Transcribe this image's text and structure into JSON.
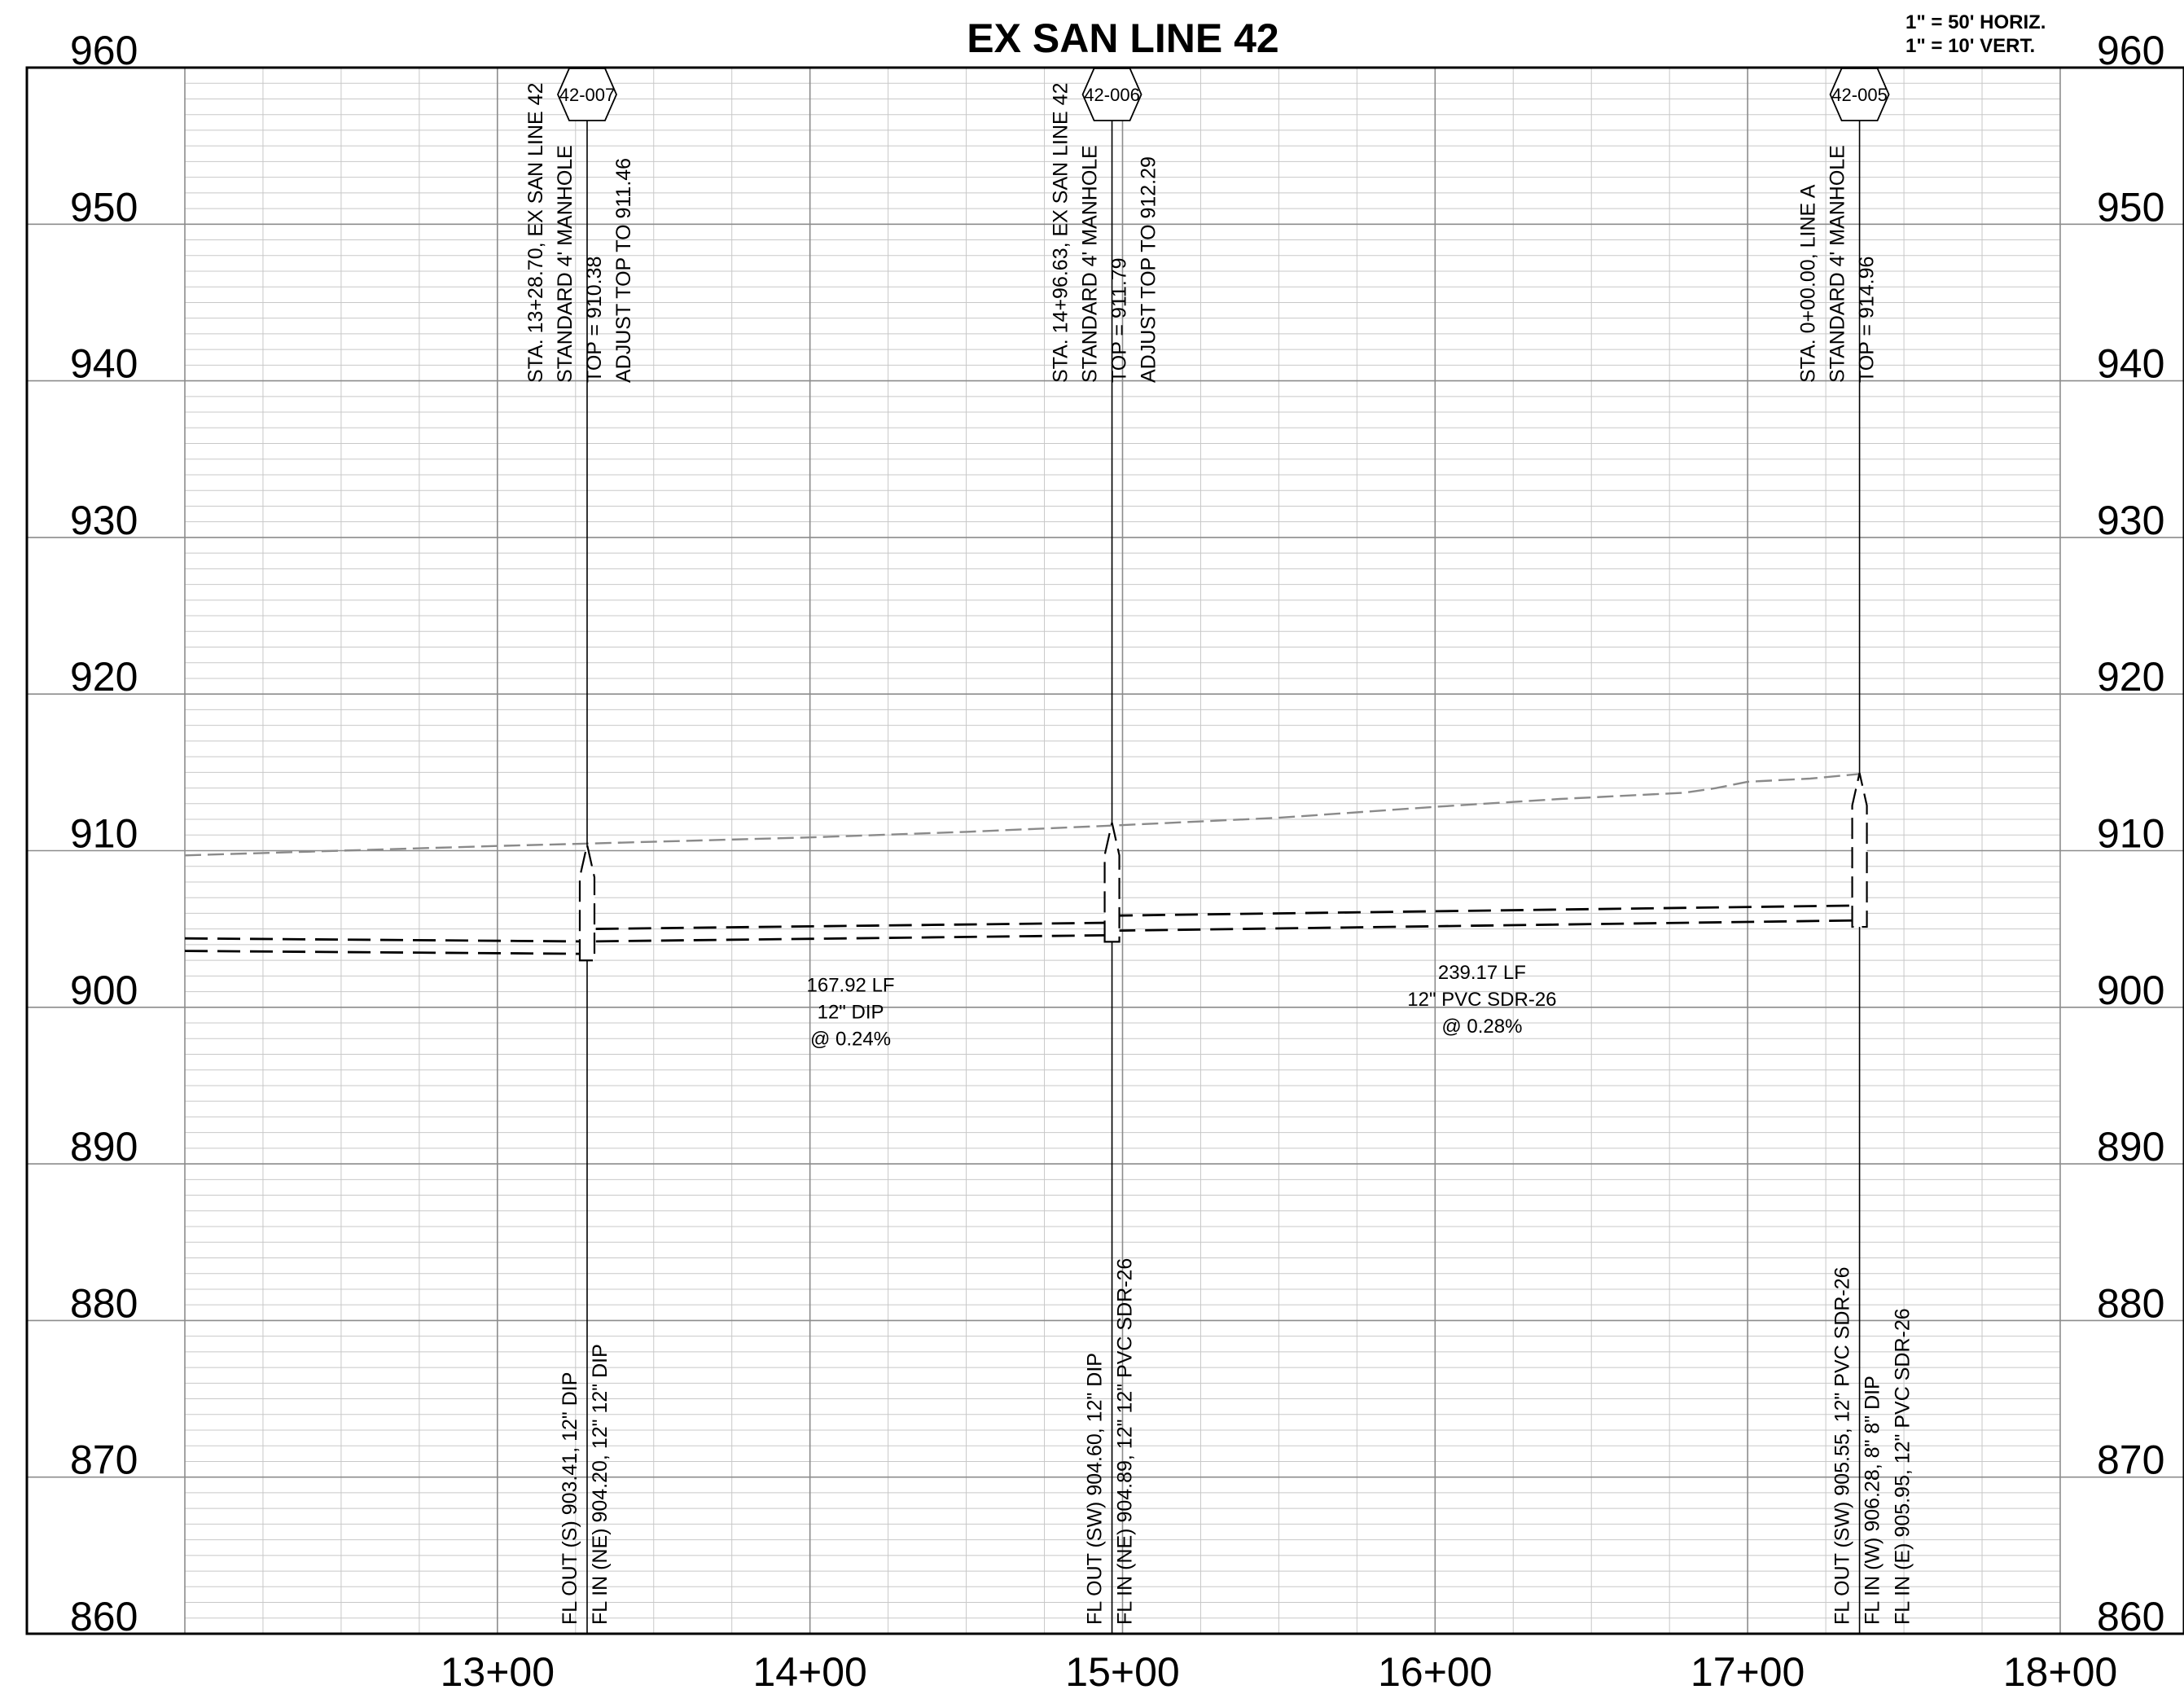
{
  "title": "EX SAN LINE 42",
  "scale": {
    "horizontal": "1\" = 50' HORIZ.",
    "vertical": "1\" = 10' VERT."
  },
  "elevation_labels": [
    "960",
    "950",
    "940",
    "930",
    "920",
    "910",
    "900",
    "890",
    "880",
    "870",
    "860"
  ],
  "station_labels": [
    "13+00",
    "14+00",
    "15+00",
    "16+00",
    "17+00",
    "18+00"
  ],
  "structures": [
    {
      "tag": "42-007",
      "station": 1328.7,
      "top": 910.38,
      "invert": 903.41,
      "top_notes": [
        "STA. 13+28.70, EX SAN LINE 42",
        "STANDARD 4' MANHOLE",
        "TOP = 910.38",
        "ADJUST TOP TO 911.46"
      ],
      "bottom_notes": [
        "FL OUT (S) 903.41, 12\" DIP",
        "FL IN (NE) 904.20, 12\" 12\" DIP"
      ]
    },
    {
      "tag": "42-006",
      "station": 1496.63,
      "top": 911.79,
      "invert": 904.6,
      "top_notes": [
        "STA. 14+96.63, EX SAN LINE 42",
        "STANDARD 4' MANHOLE",
        "TOP = 911.79",
        "ADJUST TOP TO 912.29"
      ],
      "bottom_notes": [
        "FL OUT (SW) 904.60, 12\" DIP",
        "FL IN (NE) 904.89, 12\" 12\" PVC SDR-26"
      ]
    },
    {
      "tag": "42-005",
      "station": 1735.8,
      "top": 914.96,
      "invert": 905.55,
      "top_notes": [
        "STA. 0+00.00, LINE A",
        "STANDARD 4' MANHOLE",
        "TOP = 914.96"
      ],
      "bottom_notes": [
        "FL OUT (SW) 905.55, 12\" PVC SDR-26",
        "FL IN (W) 906.28, 8\" 8\" DIP",
        "FL IN (E) 905.95, 12\" PVC SDR-26"
      ]
    }
  ],
  "pipe_labels": [
    {
      "lines": [
        "167.92 LF",
        "12\" DIP",
        "@ 0.24%"
      ],
      "station": 1413,
      "elevation": 901
    },
    {
      "lines": [
        "239.17 LF",
        "12\" PVC SDR-26",
        "@ 0.28%"
      ],
      "station": 1615,
      "elevation": 901.8
    }
  ],
  "chart_data": {
    "type": "line",
    "title": "EX SAN LINE 42",
    "xlabel": "",
    "ylabel": "",
    "xlim": [
      1200,
      1800
    ],
    "ylim": [
      860,
      960
    ],
    "grid": true,
    "series": [
      {
        "style": "dashed-gray",
        "x": [
          1200,
          1250,
          1300,
          1328.7,
          1400,
          1450,
          1496.63,
          1550,
          1600,
          1640,
          1650,
          1680,
          1690,
          1700,
          1720,
          1735.8
        ],
        "y": [
          909.7,
          910.0,
          910.3,
          910.45,
          910.85,
          911.2,
          911.6,
          912.1,
          912.8,
          913.3,
          913.4,
          913.7,
          914.0,
          914.4,
          914.6,
          914.9
        ]
      },
      {
        "style": "dashed-pipe-top",
        "x": [
          1200,
          1328.7,
          1328.7,
          1496.63,
          1496.63,
          1735.8
        ],
        "y": [
          904.4,
          904.2,
          905.0,
          905.4,
          905.85,
          906.5
        ]
      },
      {
        "style": "dashed-pipe-bottom",
        "x": [
          1200,
          1328.7,
          1328.7,
          1496.63,
          1496.63,
          1735.8
        ],
        "y": [
          903.6,
          903.41,
          904.2,
          904.6,
          904.89,
          905.55
        ]
      }
    ]
  }
}
